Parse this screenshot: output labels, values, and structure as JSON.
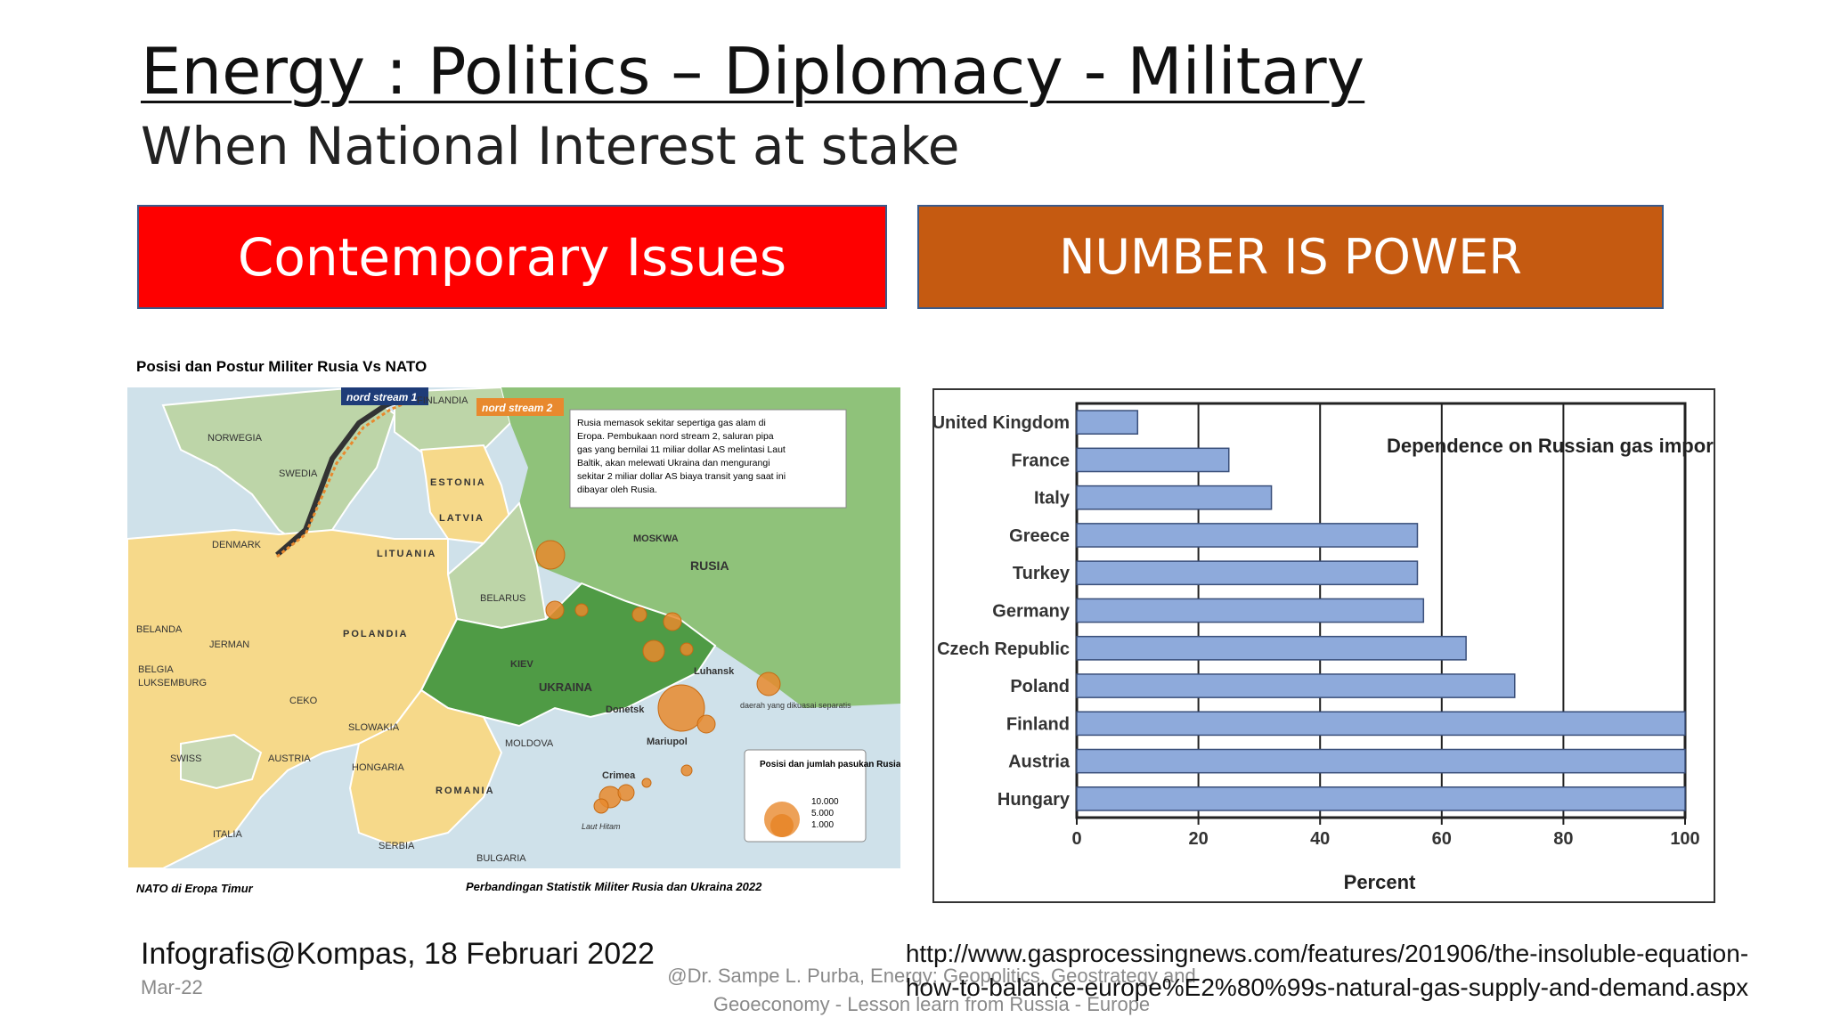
{
  "slide": {
    "title": "Energy : Politics – Diplomacy - Military",
    "subtitle": "When National Interest at stake",
    "left_header": "Contemporary Issues",
    "right_header": "NUMBER IS POWER",
    "credit": "Infografis@Kompas, 18 Februari 2022",
    "date": "Mar-22",
    "author": "@Dr. Sampe L. Purba, Energy: Geopolitics, Geostrategy and Geoeconomy - Lesson learn from Russia - Europe",
    "source_url": "http://www.gasprocessingnews.com/features/201906/the-insoluble-equation-how-to-balance-europe%E2%80%99s-natural-gas-supply-and-demand.aspx",
    "colors": {
      "left_header": "#fe0000",
      "right_header": "#c55a11",
      "bar_fill": "#8eaadb",
      "nato_land": "#f6d98a",
      "russia_land": "#8fc27a",
      "ukraine_land": "#4f9b45",
      "sea": "#cfe1ea",
      "troops": "#e8892e"
    }
  },
  "map": {
    "title": "Posisi dan Postur Militer Rusia Vs NATO",
    "footer_left": "NATO di Eropa Timur",
    "footer_right": "Perbandingan Statistik Militer Rusia dan Ukraina 2022",
    "pipeline1": "nord stream 1",
    "pipeline2": "nord stream 2",
    "note_lines": [
      "Rusia memasok sekitar sepertiga gas alam di",
      "Eropa. Pembukaan nord stream 2, saluran pipa",
      "gas yang bernilai 11 miliar dollar AS melintasi Laut",
      "Baltik, akan melewati Ukraina dan mengurangi",
      "sekitar 2 miliar dollar AS biaya transit yang saat ini",
      "dibayar oleh Rusia."
    ],
    "labels": {
      "finlandia": "FINLANDIA",
      "norwegia": "NORWEGIA",
      "swedia": "SWEDIA",
      "estonia": "ESTONIA",
      "latvia": "LATVIA",
      "lituania": "LITUANIA",
      "denmark": "DENMARK",
      "belarus": "BELARUS",
      "moskwa": "MOSKWA",
      "rusia": "RUSIA",
      "polandia": "POLANDIA",
      "belanda": "BELANDA",
      "jerman": "JERMAN",
      "belgia": "BELGIA",
      "luksemburg": "LUKSEMBURG",
      "ceko": "CEKO",
      "kiev": "KIEV",
      "ukraina": "UKRAINA",
      "luhansk": "Luhansk",
      "donetsk": "Donetsk",
      "mariupol": "Mariupol",
      "daerah": "daerah yang dikuasai separatis",
      "slowakia": "SLOWAKIA",
      "moldova": "MOLDOVA",
      "swiss": "SWISS",
      "austria": "AUSTRIA",
      "hongaria": "HONGARIA",
      "crimea": "Crimea",
      "romania": "ROMANIA",
      "italia": "ITALIA",
      "serbia": "SERBIA",
      "bulgaria": "BULGARIA",
      "laut_hitam": "Laut Hitam"
    },
    "legend_title": "Posisi dan jumlah pasukan Rusia",
    "legend_values": [
      "10.000",
      "5.000",
      "1.000"
    ]
  },
  "chart_data": {
    "type": "bar",
    "orientation": "horizontal",
    "title": "Dependence on Russian gas imports",
    "xlabel": "Percent",
    "ylabel": "",
    "xlim": [
      0,
      100
    ],
    "xticks": [
      0,
      20,
      40,
      60,
      80,
      100
    ],
    "grid": true,
    "categories": [
      "United Kingdom",
      "France",
      "Italy",
      "Greece",
      "Turkey",
      "Germany",
      "Czech Republic",
      "Poland",
      "Finland",
      "Austria",
      "Hungary"
    ],
    "values": [
      10,
      25,
      32,
      56,
      56,
      57,
      64,
      72,
      100,
      100,
      100
    ]
  }
}
